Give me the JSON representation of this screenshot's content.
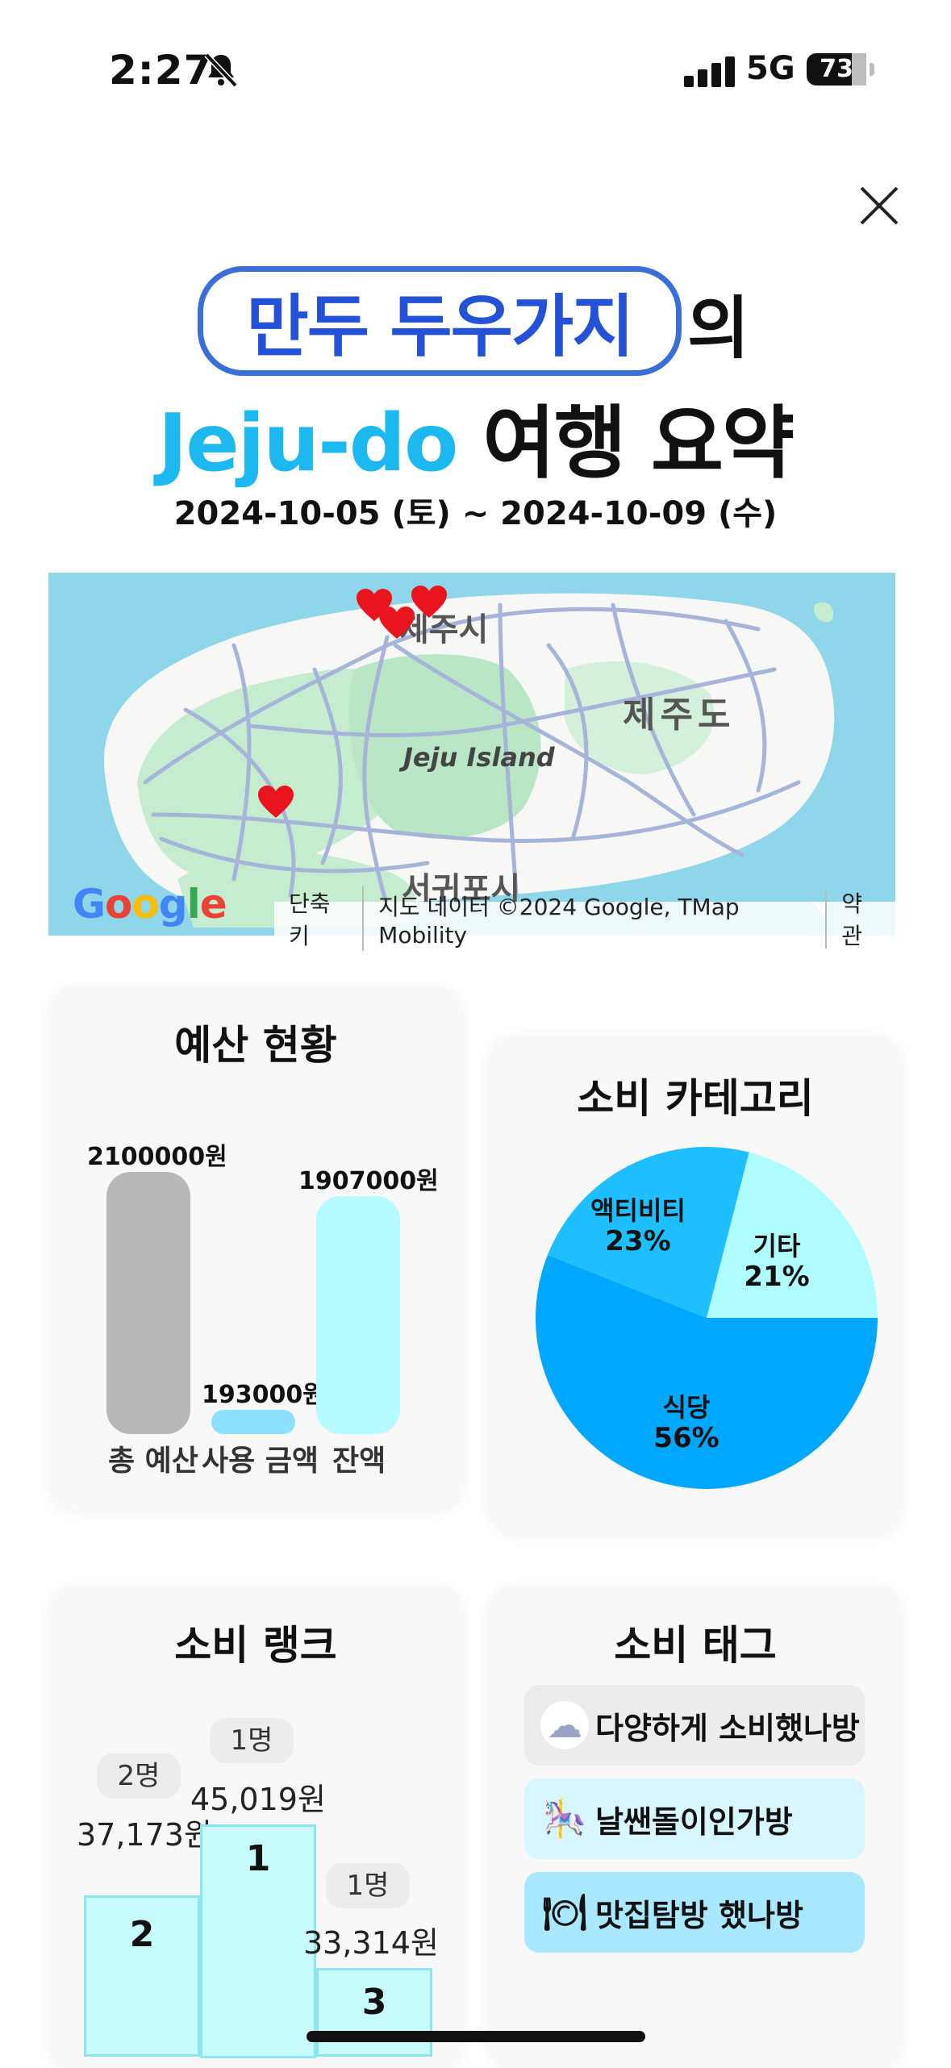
{
  "status_bar": {
    "time": "2:27",
    "network": "5G",
    "battery": "73"
  },
  "header": {
    "user_name": "만두 두우가지",
    "possessive": "의",
    "destination": "Jeju-do",
    "title_suffix": "여행 요약",
    "date_range": "2024-10-05 (토) ~ 2024-10-09 (수)"
  },
  "map": {
    "labels": {
      "city_north": "제주시",
      "island_en": "Jeju Island",
      "island_ko": "제주도",
      "city_south": "서귀포시"
    },
    "logo": "Google",
    "attribution": [
      "단축키",
      "지도 데이터 ©2024 Google, TMap Mobility",
      "약관"
    ],
    "marker_icon": "heart-marker-icon"
  },
  "budget": {
    "title": "예산 현황",
    "items": [
      {
        "label": "총 예산",
        "value": "2100000원",
        "amount": 2100000,
        "color": "#b8b8b8"
      },
      {
        "label": "사용 금액",
        "value": "193000원",
        "amount": 193000,
        "color": "#8de0ff"
      },
      {
        "label": "잔액",
        "value": "1907000원",
        "amount": 1907000,
        "color": "#b5fbff"
      }
    ]
  },
  "category": {
    "title": "소비 카테고리",
    "slices": [
      {
        "name": "식당",
        "percent": "56%",
        "value": 56,
        "color": "#00a7ff"
      },
      {
        "name": "액티비티",
        "percent": "23%",
        "value": 23,
        "color": "#1fbfff"
      },
      {
        "name": "기타",
        "percent": "21%",
        "value": 21,
        "color": "#b0fdff"
      }
    ]
  },
  "rank": {
    "title": "소비 랭크",
    "items": [
      {
        "rank": "2",
        "people": "2명",
        "amount": "37,173원"
      },
      {
        "rank": "1",
        "people": "1명",
        "amount": "45,019원"
      },
      {
        "rank": "3",
        "people": "1명",
        "amount": "33,314원"
      }
    ]
  },
  "tags": {
    "title": "소비 태그",
    "items": [
      {
        "label": "다양하게 소비했나방",
        "icon": "cloud-face-icon",
        "glyph": "☁",
        "bg": "#ececec"
      },
      {
        "label": "날쌘돌이인가방",
        "icon": "carousel-icon",
        "glyph": "🎠",
        "bg": "#d8f6ff"
      },
      {
        "label": "맛집탐방 했나방",
        "icon": "plate-cutlery-icon",
        "glyph": "🍽",
        "bg": "#a9e8ff"
      }
    ]
  }
}
